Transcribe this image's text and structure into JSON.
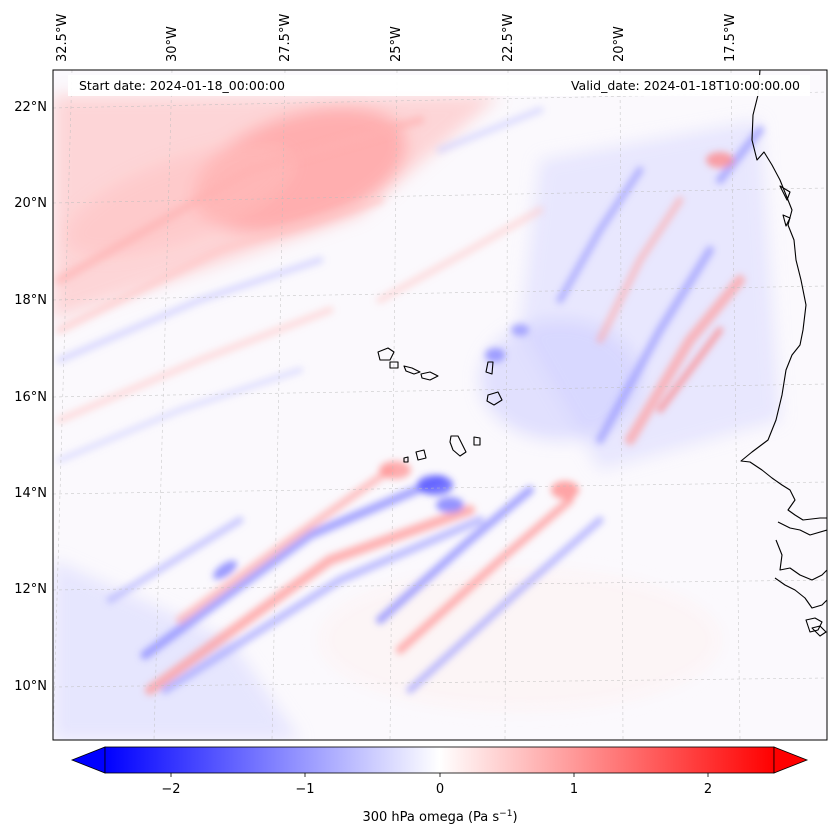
{
  "figure": {
    "start_label": "Start date: 2024-01-18_00:00:00",
    "valid_label": "Valid_date: 2024-01-18T10:00:00.00",
    "colorbar_label_main": "300 hPa omega (Pa s",
    "colorbar_label_exp": "−1",
    "colorbar_label_close": ")"
  },
  "chart_data": {
    "type": "heatmap",
    "title": "",
    "variable": "300 hPa omega",
    "units": "Pa s-1",
    "colormap": "bwr",
    "color_min": "#0000ff",
    "color_mid": "#ffffff",
    "color_max": "#ff0000",
    "colorbar_range": [
      -2.6,
      2.6
    ],
    "colorbar_extend": "both",
    "colorbar_ticks": [
      -2,
      -1,
      0,
      1,
      2
    ],
    "colorbar_tick_labels": [
      "−2",
      "−1",
      "0",
      "1",
      "2"
    ],
    "lon_ticks": [
      -32.5,
      -30,
      -27.5,
      -25,
      -22.5,
      -20,
      -17.5
    ],
    "lon_tick_labels": [
      "32.5°W",
      "30°W",
      "27.5°W",
      "25°W",
      "22.5°W",
      "20°W",
      "17.5°W"
    ],
    "lat_ticks": [
      10,
      12,
      14,
      16,
      18,
      20,
      22
    ],
    "lat_tick_labels": [
      "10°N",
      "12°N",
      "14°N",
      "16°N",
      "18°N",
      "20°N",
      "22°N"
    ],
    "gridlines": true,
    "coastlines": true
  }
}
